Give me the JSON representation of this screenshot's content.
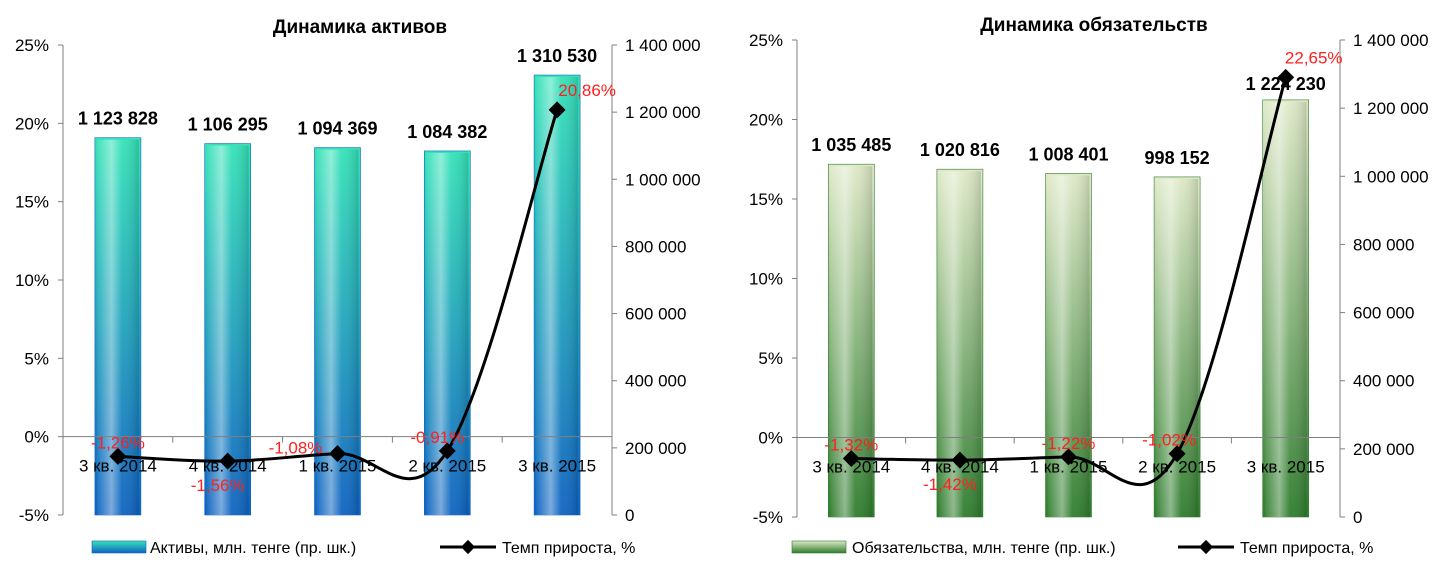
{
  "chart_data": [
    {
      "type": "bar",
      "title": "Динамика активов",
      "categories": [
        "3 кв. 2014",
        "4 кв. 2014",
        "1 кв. 2015",
        "2 кв. 2015",
        "3 кв. 2015"
      ],
      "left_ticks": [
        "25%",
        "20%",
        "15%",
        "10%",
        "5%",
        "0%",
        "-5%"
      ],
      "right_ticks": [
        "1 400 000",
        "1 200 000",
        "1 000 000",
        "800 000",
        "600 000",
        "400 000",
        "200 000",
        "0"
      ],
      "ylim_left": [
        -5,
        25
      ],
      "ylim_right": [
        0,
        1400000
      ],
      "series": [
        {
          "name": "Активы, млн. тенге (пр. шк.)",
          "type": "bar",
          "axis": "right",
          "values": [
            1123828,
            1106295,
            1094369,
            1084382,
            1310530
          ],
          "labels": [
            "1 123 828",
            "1 106 295",
            "1 094 369",
            "1 084 382",
            "1 310 530"
          ]
        },
        {
          "name": "Темп прироста, %",
          "type": "line",
          "axis": "left",
          "values": [
            -1.26,
            -1.56,
            -1.08,
            -0.91,
            20.86
          ],
          "labels": [
            "-1,26%",
            "-1,56%",
            "-1,08%",
            "-0,91%",
            "20,86%"
          ]
        }
      ],
      "colors": {
        "bar_light": "#35e3b8",
        "bar_dark": "#0f63c2",
        "line": "#000000",
        "label": "#ff2020"
      },
      "legend_position": "bottom"
    },
    {
      "type": "bar",
      "title": "Динамика обязательств",
      "categories": [
        "3 кв. 2014",
        "4 кв. 2014",
        "1 кв. 2015",
        "2 кв. 2015",
        "3 кв. 2015"
      ],
      "left_ticks": [
        "25%",
        "20%",
        "15%",
        "10%",
        "5%",
        "0%",
        "-5%"
      ],
      "right_ticks": [
        "1 400 000",
        "1 200 000",
        "1 000 000",
        "800 000",
        "600 000",
        "400 000",
        "200 000",
        "0"
      ],
      "ylim_left": [
        -5,
        25
      ],
      "ylim_right": [
        0,
        1400000
      ],
      "series": [
        {
          "name": "Обязательства, млн. тенге (пр. шк.)",
          "type": "bar",
          "axis": "right",
          "values": [
            1035485,
            1020816,
            1008401,
            998152,
            1224230
          ],
          "labels": [
            "1 035 485",
            "1 020 816",
            "1 008 401",
            "998 152",
            "1 224 230"
          ]
        },
        {
          "name": "Темп прироста, %",
          "type": "line",
          "axis": "left",
          "values": [
            -1.32,
            -1.42,
            -1.22,
            -1.02,
            22.65
          ],
          "labels": [
            "-1,32%",
            "-1,42%",
            "-1,22%",
            "-1,02%",
            "22,65%"
          ]
        }
      ],
      "colors": {
        "bar_light": "#dfe9c8",
        "bar_dark": "#2f7d2e",
        "line": "#000000",
        "label": "#ff2020"
      },
      "legend_position": "bottom"
    }
  ]
}
